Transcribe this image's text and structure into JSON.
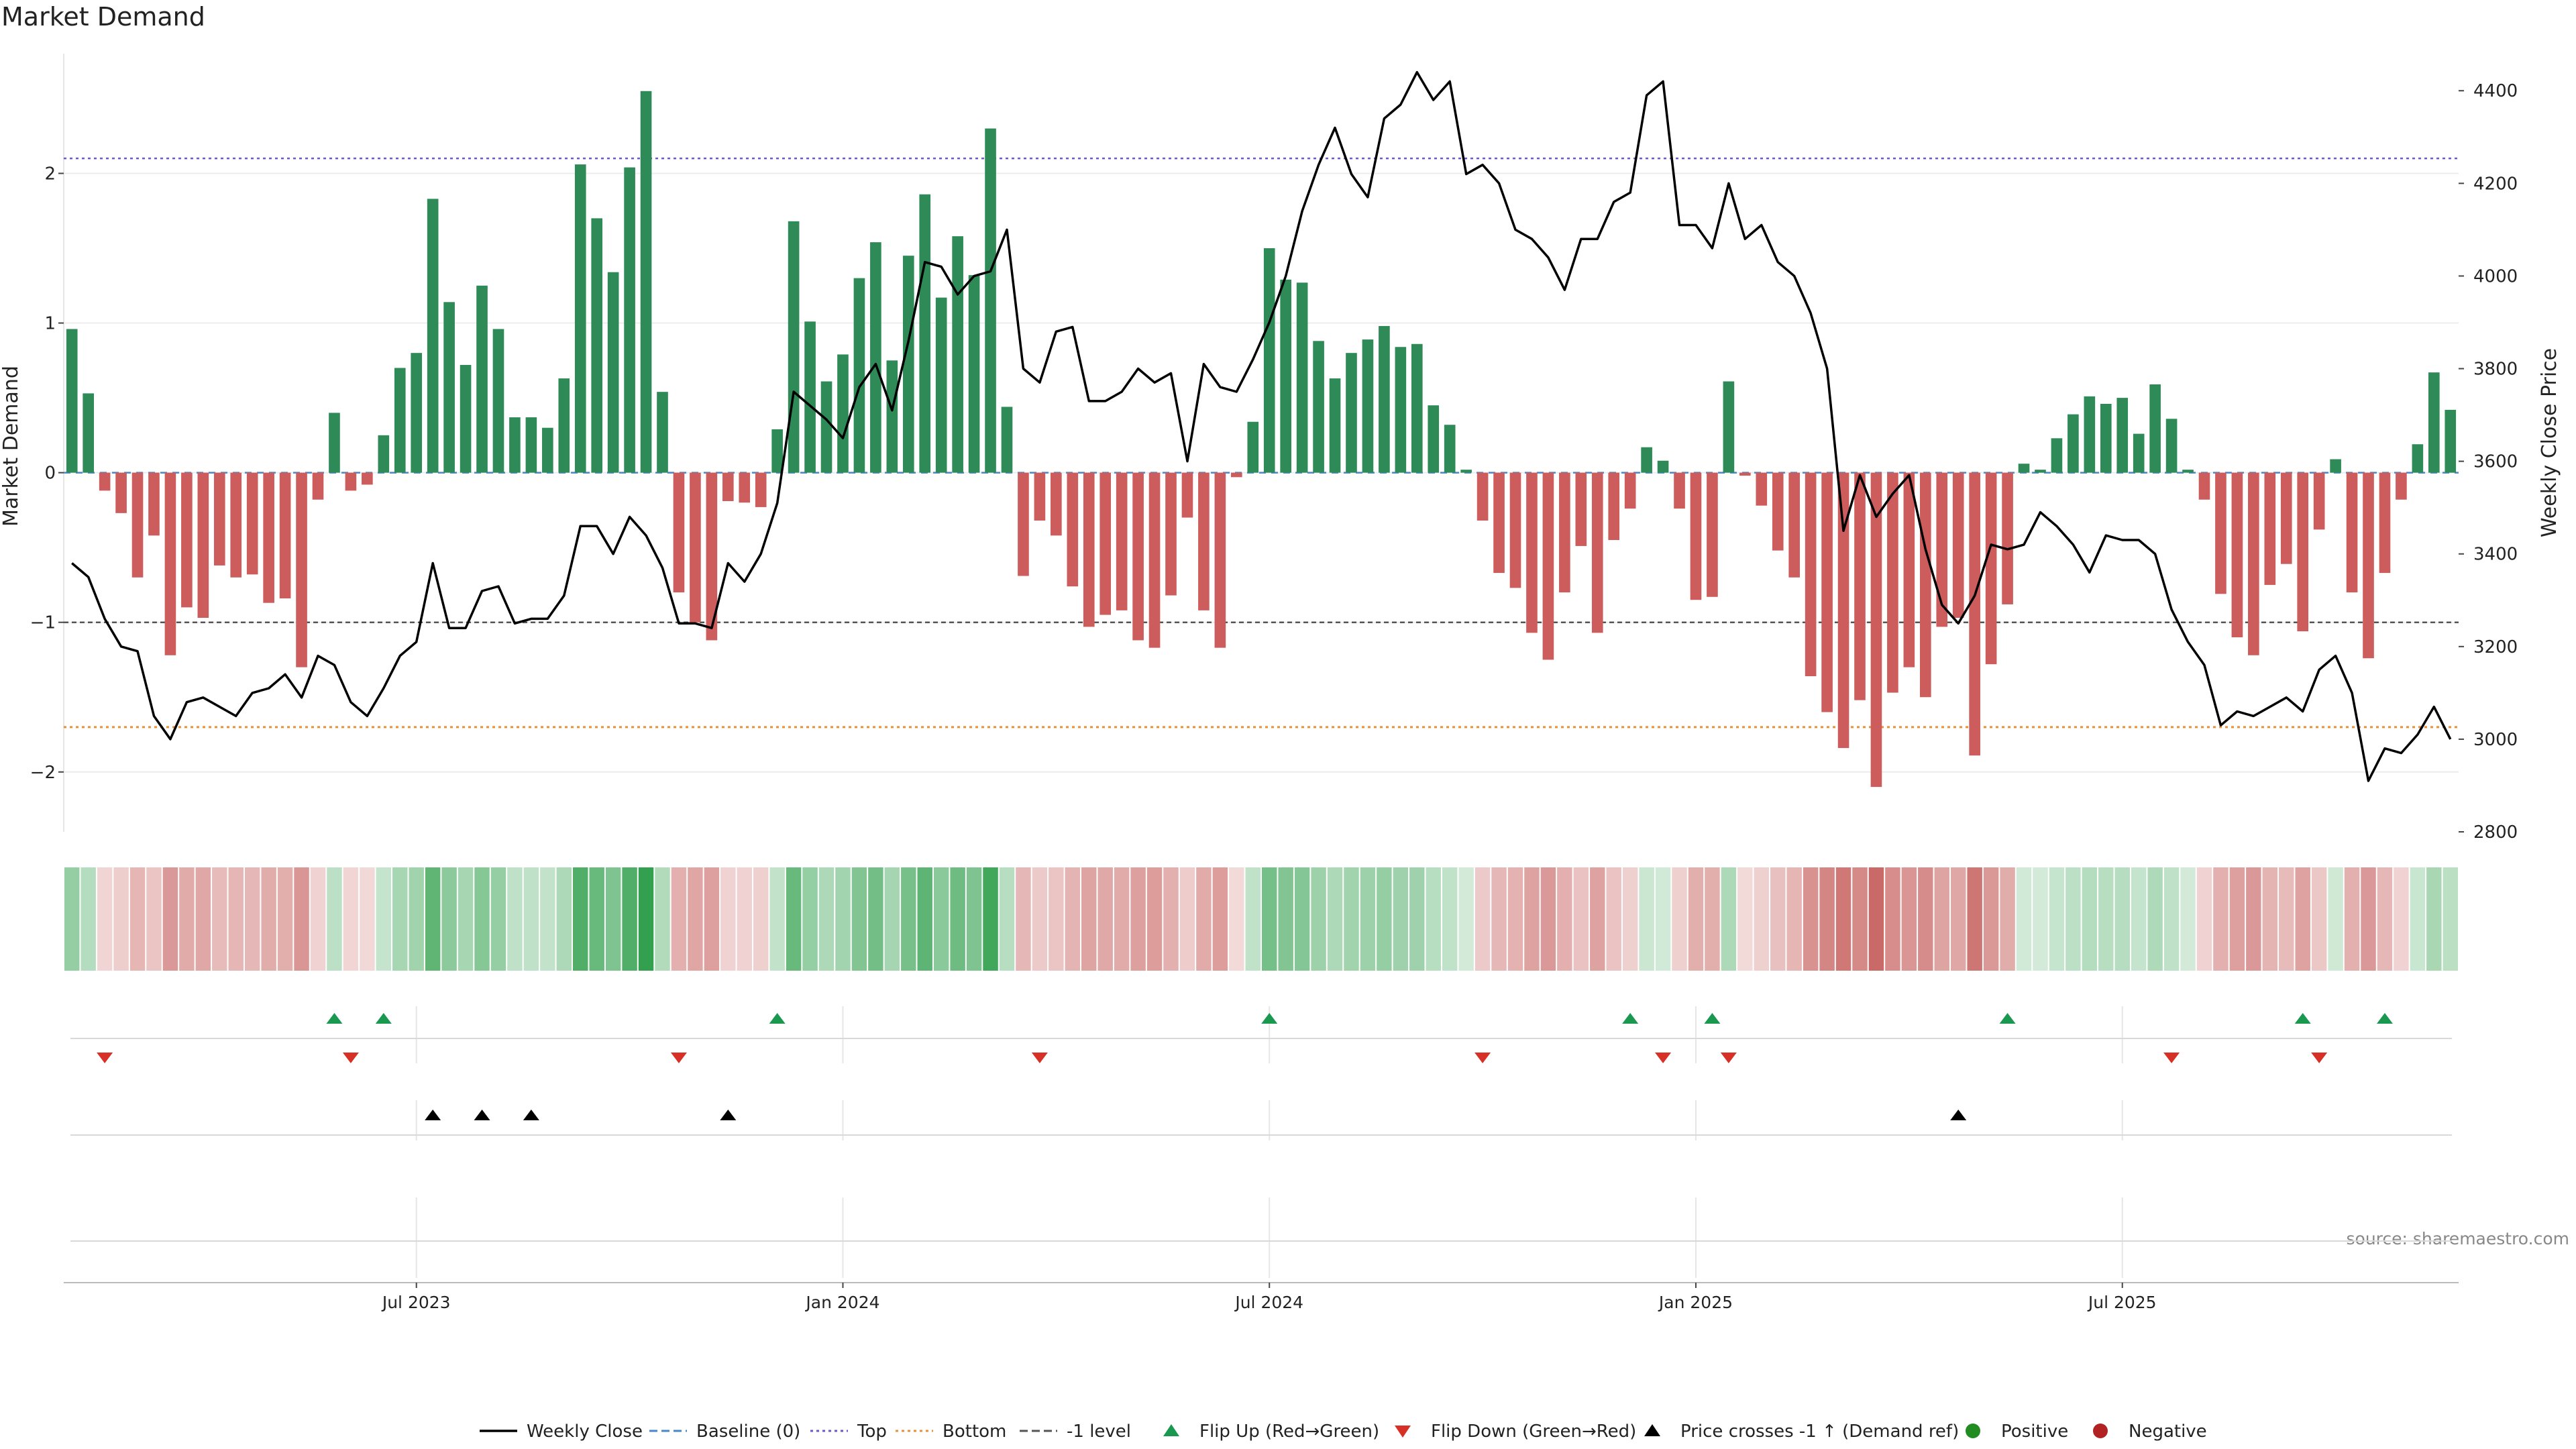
{
  "chart_data": {
    "type": "bar",
    "title": "Market Demand",
    "ylabel_left": "Market Demand",
    "ylabel_right": "Weekly Close Price",
    "source": "source: sharemaestro.com",
    "ylim_left": [
      -2.4,
      2.8
    ],
    "ylim_right": [
      2800,
      4480
    ],
    "yticks_left": [
      {
        "v": 2,
        "label": "2"
      },
      {
        "v": 1,
        "label": "1"
      },
      {
        "v": 0,
        "label": "0"
      },
      {
        "v": -1,
        "label": "−1"
      },
      {
        "v": -2,
        "label": "−2"
      }
    ],
    "yticks_right": [
      {
        "v": 4400,
        "label": "4400"
      },
      {
        "v": 4200,
        "label": "4200"
      },
      {
        "v": 4000,
        "label": "4000"
      },
      {
        "v": 3800,
        "label": "3800"
      },
      {
        "v": 3600,
        "label": "3600"
      },
      {
        "v": 3400,
        "label": "3400"
      },
      {
        "v": 3200,
        "label": "3200"
      },
      {
        "v": 3000,
        "label": "3000"
      },
      {
        "v": 2800,
        "label": "2800"
      }
    ],
    "x_ticks": [
      {
        "index": 21,
        "label": "Jul 2023"
      },
      {
        "index": 47,
        "label": "Jan 2024"
      },
      {
        "index": 73,
        "label": "Jul 2024"
      },
      {
        "index": 99,
        "label": "Jan 2025"
      },
      {
        "index": 125,
        "label": "Jul 2025"
      }
    ],
    "reference_lines": {
      "top": 2.1,
      "bottom": -1.7,
      "minus_one": -1.0,
      "baseline": 0
    },
    "colors": {
      "positive": "#2e8b57",
      "negative": "#cd5c5c",
      "price": "#000000",
      "top": "#6a5acd",
      "bottom": "#e69138",
      "minus_one": "#555555",
      "baseline": "#4a86c8",
      "flip_up": "#1a9850",
      "flip_down": "#d73027",
      "cross": "#000000",
      "heat_pos": "#2e9e4a",
      "heat_neg": "#c0504d"
    },
    "demand": [
      0.96,
      0.53,
      -0.12,
      -0.27,
      -0.7,
      -0.42,
      -1.22,
      -0.9,
      -0.97,
      -0.62,
      -0.7,
      -0.68,
      -0.87,
      -0.84,
      -1.3,
      -0.18,
      0.4,
      -0.12,
      -0.08,
      0.25,
      0.7,
      0.8,
      1.83,
      1.14,
      0.72,
      1.25,
      0.96,
      0.37,
      0.37,
      0.3,
      0.63,
      2.06,
      1.7,
      1.34,
      2.04,
      2.55,
      0.54,
      -0.8,
      -1.0,
      -1.12,
      -0.19,
      -0.2,
      -0.23,
      0.29,
      1.68,
      1.01,
      0.61,
      0.79,
      1.3,
      1.54,
      0.75,
      1.45,
      1.86,
      1.17,
      1.58,
      1.32,
      2.3,
      0.44,
      -0.69,
      -0.32,
      -0.42,
      -0.76,
      -1.03,
      -0.95,
      -0.92,
      -1.12,
      -1.17,
      -0.82,
      -0.3,
      -0.92,
      -1.17,
      -0.03,
      0.34,
      1.5,
      1.29,
      1.27,
      0.88,
      0.63,
      0.8,
      0.89,
      0.98,
      0.84,
      0.86,
      0.45,
      0.32,
      0.02,
      -0.32,
      -0.67,
      -0.77,
      -1.07,
      -1.25,
      -0.8,
      -0.49,
      -1.07,
      -0.45,
      -0.24,
      0.17,
      0.08,
      -0.24,
      -0.85,
      -0.83,
      0.61,
      -0.02,
      -0.22,
      -0.52,
      -0.7,
      -1.36,
      -1.6,
      -1.84,
      -1.52,
      -2.1,
      -1.47,
      -1.3,
      -1.5,
      -1.03,
      -0.97,
      -1.89,
      -1.28,
      -0.88,
      0.06,
      0.02,
      0.23,
      0.39,
      0.51,
      0.46,
      0.5,
      0.26,
      0.59,
      0.36,
      0.02,
      -0.18,
      -0.81,
      -1.1,
      -1.22,
      -0.75,
      -0.61,
      -1.06,
      -0.38,
      0.09,
      -0.8,
      -1.24,
      -0.67,
      -0.18,
      0.19,
      0.67,
      0.42
    ],
    "close": [
      3380,
      3350,
      3260,
      3200,
      3190,
      3050,
      3000,
      3080,
      3090,
      3070,
      3050,
      3100,
      3110,
      3140,
      3090,
      3180,
      3160,
      3080,
      3050,
      3110,
      3180,
      3210,
      3380,
      3240,
      3240,
      3320,
      3330,
      3250,
      3260,
      3260,
      3310,
      3460,
      3460,
      3400,
      3480,
      3440,
      3370,
      3250,
      3250,
      3240,
      3380,
      3340,
      3400,
      3510,
      3750,
      3720,
      3690,
      3650,
      3760,
      3810,
      3710,
      3860,
      4030,
      4020,
      3960,
      4000,
      4010,
      4100,
      3800,
      3770,
      3880,
      3890,
      3730,
      3730,
      3750,
      3800,
      3770,
      3790,
      3600,
      3810,
      3760,
      3750,
      3820,
      3900,
      4000,
      4140,
      4240,
      4320,
      4220,
      4170,
      4340,
      4370,
      4440,
      4380,
      4420,
      4220,
      4240,
      4200,
      4100,
      4080,
      4040,
      3970,
      4080,
      4080,
      4160,
      4180,
      4390,
      4420,
      4110,
      4110,
      4060,
      4200,
      4080,
      4110,
      4030,
      4000,
      3920,
      3800,
      3450,
      3570,
      3480,
      3530,
      3570,
      3410,
      3290,
      3250,
      3310,
      3420,
      3410,
      3420,
      3490,
      3460,
      3420,
      3360,
      3440,
      3430,
      3430,
      3400,
      3280,
      3210,
      3160,
      3030,
      3060,
      3050,
      3070,
      3090,
      3060,
      3150,
      3180,
      3100,
      2910,
      2980,
      2970,
      3010,
      3070,
      3000
    ],
    "flip_up": [
      16,
      19,
      43,
      73,
      95,
      100,
      118,
      136,
      141
    ],
    "flip_down": [
      2,
      17,
      37,
      59,
      86,
      97,
      101,
      128,
      137
    ],
    "price_crosses": [
      22,
      25,
      28,
      40,
      115
    ],
    "legend": [
      {
        "label": "Weekly Close",
        "symbol": "line",
        "color": "#000000"
      },
      {
        "label": "Baseline (0)",
        "symbol": "dash",
        "color": "#4a86c8"
      },
      {
        "label": "Top",
        "symbol": "dot",
        "color": "#6a5acd"
      },
      {
        "label": "Bottom",
        "symbol": "dot",
        "color": "#e69138"
      },
      {
        "label": "-1 level",
        "symbol": "dash",
        "color": "#555555"
      },
      {
        "label": "Flip Up (Red→Green)",
        "symbol": "tri-up",
        "color": "#1a9850"
      },
      {
        "label": "Flip Down (Green→Red)",
        "symbol": "tri-down",
        "color": "#d73027"
      },
      {
        "label": "Price crosses -1 ↑ (Demand ref)",
        "symbol": "tri-up",
        "color": "#000000"
      },
      {
        "label": "Positive",
        "symbol": "circle",
        "color": "#228b22"
      },
      {
        "label": "Negative",
        "symbol": "circle",
        "color": "#b22222"
      }
    ],
    "legend_position": "bottom-center",
    "grid": true
  }
}
